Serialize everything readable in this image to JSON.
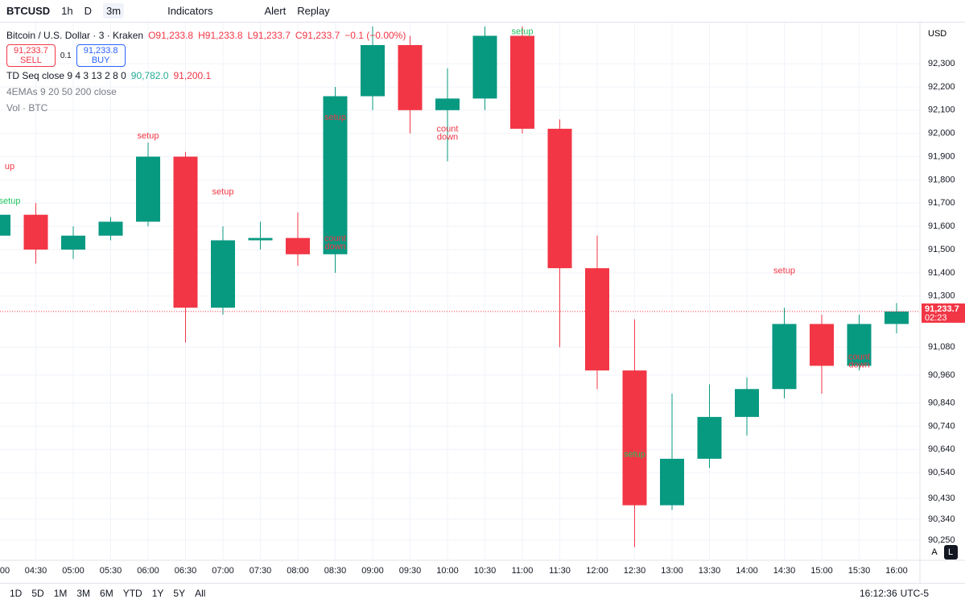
{
  "ui": {
    "symbol": "BTCUSD",
    "intervals": [
      "1h",
      "D",
      "3m"
    ],
    "indicators": "Indicators",
    "alert": "Alert",
    "replay": "Replay",
    "legend_title": "Bitcoin / U.S. Dollar · 3 · Kraken",
    "ohlc": [
      "O91,233.8",
      "H91,233.8",
      "L91,233.7",
      "C91,233.7",
      "−0.1 (−0.00%)"
    ],
    "sell_price": "91,233.7",
    "sell": "SELL",
    "qty": "0.1",
    "buy_price": "91,233.8",
    "buy": "BUY",
    "td_seq": "TD Seq close 9 4 3 13 2 8 0",
    "td_val1": "90,782.0",
    "td_val2": "91,200.1",
    "emas": "4EMAs 9 20 50 200 close",
    "vol": "Vol · BTC",
    "currency": "USD",
    "auto": "A",
    "log": "L",
    "ranges": [
      "1D",
      "5D",
      "1M",
      "3M",
      "6M",
      "YTD",
      "1Y",
      "5Y",
      "All"
    ],
    "clock": "16:12:36",
    "timezone": "UTC-5"
  },
  "chart_data": {
    "type": "candlestick",
    "categories": [
      "00",
      "04:30",
      "05:00",
      "05:30",
      "06:00",
      "06:30",
      "07:00",
      "07:30",
      "08:00",
      "08:30",
      "09:00",
      "09:30",
      "10:00",
      "10:30",
      "11:00",
      "11:30",
      "12:00",
      "12:30",
      "13:00",
      "13:30",
      "14:00",
      "14:30",
      "15:00",
      "15:30",
      "16:00"
    ],
    "open": [
      91560,
      91650,
      91500,
      91560,
      91620,
      91900,
      91250,
      91540,
      91550,
      91480,
      92160,
      92380,
      92100,
      92150,
      92420,
      92020,
      91420,
      90980,
      90400,
      90600,
      90780,
      90900,
      91180,
      91000,
      91180
    ],
    "high": [
      91830,
      91700,
      91600,
      91640,
      91960,
      91920,
      91600,
      91620,
      91660,
      92200,
      92460,
      92420,
      92280,
      92460,
      92460,
      92060,
      91560,
      91200,
      90880,
      90920,
      90950,
      91250,
      91220,
      91220,
      91270
    ],
    "low": [
      91520,
      91440,
      91460,
      91540,
      91600,
      91100,
      91220,
      91500,
      91430,
      91400,
      92100,
      92000,
      91880,
      92100,
      92000,
      91080,
      90900,
      90220,
      90380,
      90560,
      90700,
      90860,
      90880,
      90980,
      91140
    ],
    "close": [
      91650,
      91500,
      91560,
      91620,
      91900,
      91250,
      91540,
      91550,
      91480,
      92160,
      92380,
      92100,
      92150,
      92420,
      92020,
      91420,
      90980,
      90400,
      90600,
      90780,
      90900,
      91180,
      91000,
      91180,
      91233.7
    ],
    "up_color": "#089981",
    "down_color": "#f23645",
    "ylim": [
      90163,
      92477
    ],
    "yticks": [
      {
        "value": 90250,
        "label": "90,250"
      },
      {
        "value": 90340,
        "label": "90,340"
      },
      {
        "value": 90430,
        "label": "90,430"
      },
      {
        "value": 90540,
        "label": "90,540"
      },
      {
        "value": 90640,
        "label": "90,640"
      },
      {
        "value": 90740,
        "label": "90,740"
      },
      {
        "value": 90840,
        "label": "90,840"
      },
      {
        "value": 90960,
        "label": "90,960"
      },
      {
        "value": 91080,
        "label": "91,080"
      },
      {
        "value": 91300,
        "label": "91,300"
      },
      {
        "value": 91400,
        "label": "91,400"
      },
      {
        "value": 91500,
        "label": "91,500"
      },
      {
        "value": 91600,
        "label": "91,600"
      },
      {
        "value": 91700,
        "label": "91,700"
      },
      {
        "value": 91800,
        "label": "91,800"
      },
      {
        "value": 91900,
        "label": "91,900"
      },
      {
        "value": 92000,
        "label": "92,000"
      },
      {
        "value": 92100,
        "label": "92,100"
      },
      {
        "value": 92200,
        "label": "92,200"
      },
      {
        "value": 92300,
        "label": "92,300"
      }
    ],
    "grid": true,
    "last_price": 91233.7,
    "last_price_label": "91,233.7",
    "countdown": "02:23",
    "annotations": [
      {
        "lines": [
          "up"
        ],
        "x": "00",
        "y": 91830,
        "color": "#f23645"
      },
      {
        "lines": [
          "setup"
        ],
        "x": "00",
        "y": 91680,
        "color": "#22c55e"
      },
      {
        "lines": [
          "setup"
        ],
        "x": "06:00",
        "y": 91960,
        "color": "#f23645"
      },
      {
        "lines": [
          "setup"
        ],
        "x": "07:00",
        "y": 91720,
        "color": "#f23645"
      },
      {
        "lines": [
          "count",
          "down"
        ],
        "x": "08:30",
        "y": 91520,
        "color": "#f23645"
      },
      {
        "lines": [
          "setup"
        ],
        "x": "08:30",
        "y": 92040,
        "color": "#f23645"
      },
      {
        "lines": [
          "count",
          "down"
        ],
        "x": "10:00",
        "y": 91990,
        "color": "#f23645"
      },
      {
        "lines": [
          "setup"
        ],
        "x": "11:00",
        "y": 92410,
        "color": "#22c55e"
      },
      {
        "lines": [
          "setup"
        ],
        "x": "12:30",
        "y": 90590,
        "color": "#22c55e"
      },
      {
        "lines": [
          "setup"
        ],
        "x": "14:30",
        "y": 91380,
        "color": "#f23645"
      },
      {
        "lines": [
          "count",
          "down"
        ],
        "x": "15:30",
        "y": 91010,
        "color": "#f23645"
      }
    ]
  }
}
